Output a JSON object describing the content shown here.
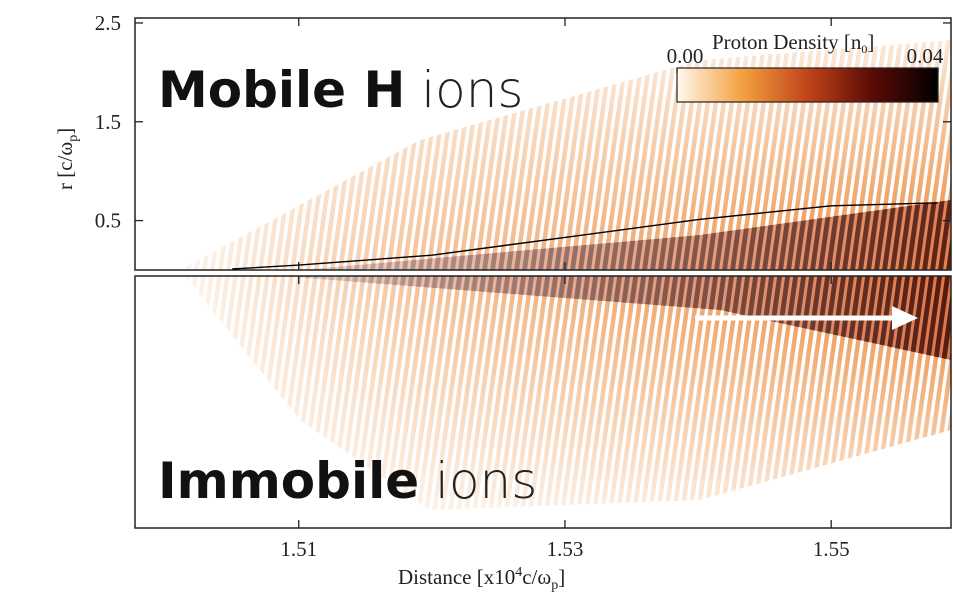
{
  "chart_data": [
    {
      "type": "heatmap",
      "label_bold": "Mobile H",
      "label_light": "ions",
      "ylabel": [
        "r [c/ω",
        "p",
        "]"
      ],
      "xlim": [
        1.4977,
        1.559
      ],
      "ylim": [
        0,
        2.55
      ],
      "yticks": [
        0.5,
        1.5,
        2.5
      ],
      "line": {
        "x": [
          1.505,
          1.51,
          1.52,
          1.53,
          1.54,
          1.55,
          1.558
        ],
        "values": [
          0.01,
          0.05,
          0.15,
          0.33,
          0.51,
          0.65,
          0.68
        ],
        "color": "#000000"
      },
      "colorbar": {
        "label": [
          "Proton Density [n",
          "0",
          "]"
        ],
        "clim": [
          0,
          0.04
        ],
        "ticks": [
          {
            "value": 0,
            "label": "0.00"
          },
          {
            "value": 0.04,
            "label": "0.04"
          }
        ],
        "colors": [
          "#fff8ee",
          "#f4a040",
          "#c0441a",
          "#5a0a05",
          "#000000"
        ]
      }
    },
    {
      "type": "heatmap",
      "label_bold": "Immobile",
      "label_light": "ions",
      "xlabel": [
        "Distance [x10",
        "4",
        "c/ω",
        "p",
        "]"
      ],
      "xlim": [
        1.4977,
        1.559
      ],
      "xticks": [
        1.51,
        1.53,
        1.55
      ]
    }
  ]
}
